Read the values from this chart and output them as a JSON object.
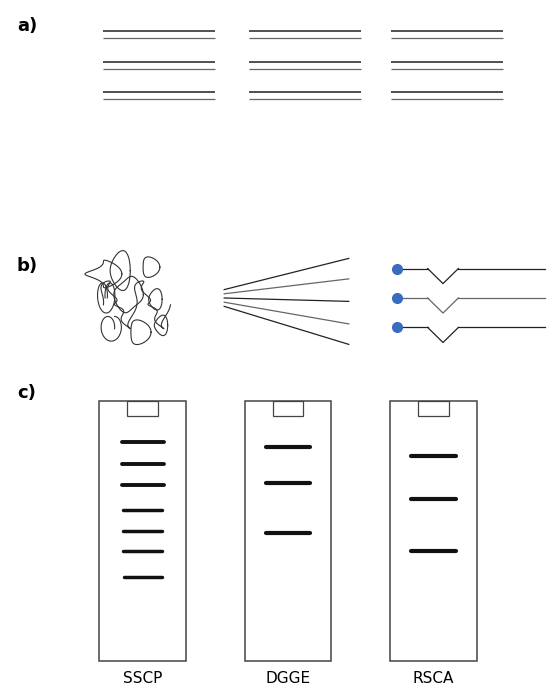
{
  "fig_width": 5.59,
  "fig_height": 6.85,
  "bg_color": "#ffffff",
  "label_a": "a)",
  "label_b": "b)",
  "label_c": "c)",
  "label_fontsize": 13,
  "label_fontweight": "bold",
  "method_labels": [
    "SSCP",
    "DGGE",
    "RSCA"
  ],
  "method_label_fontsize": 11,
  "line_color": "#666666",
  "dark_line_color": "#222222",
  "dot_color": "#3a6bbf"
}
